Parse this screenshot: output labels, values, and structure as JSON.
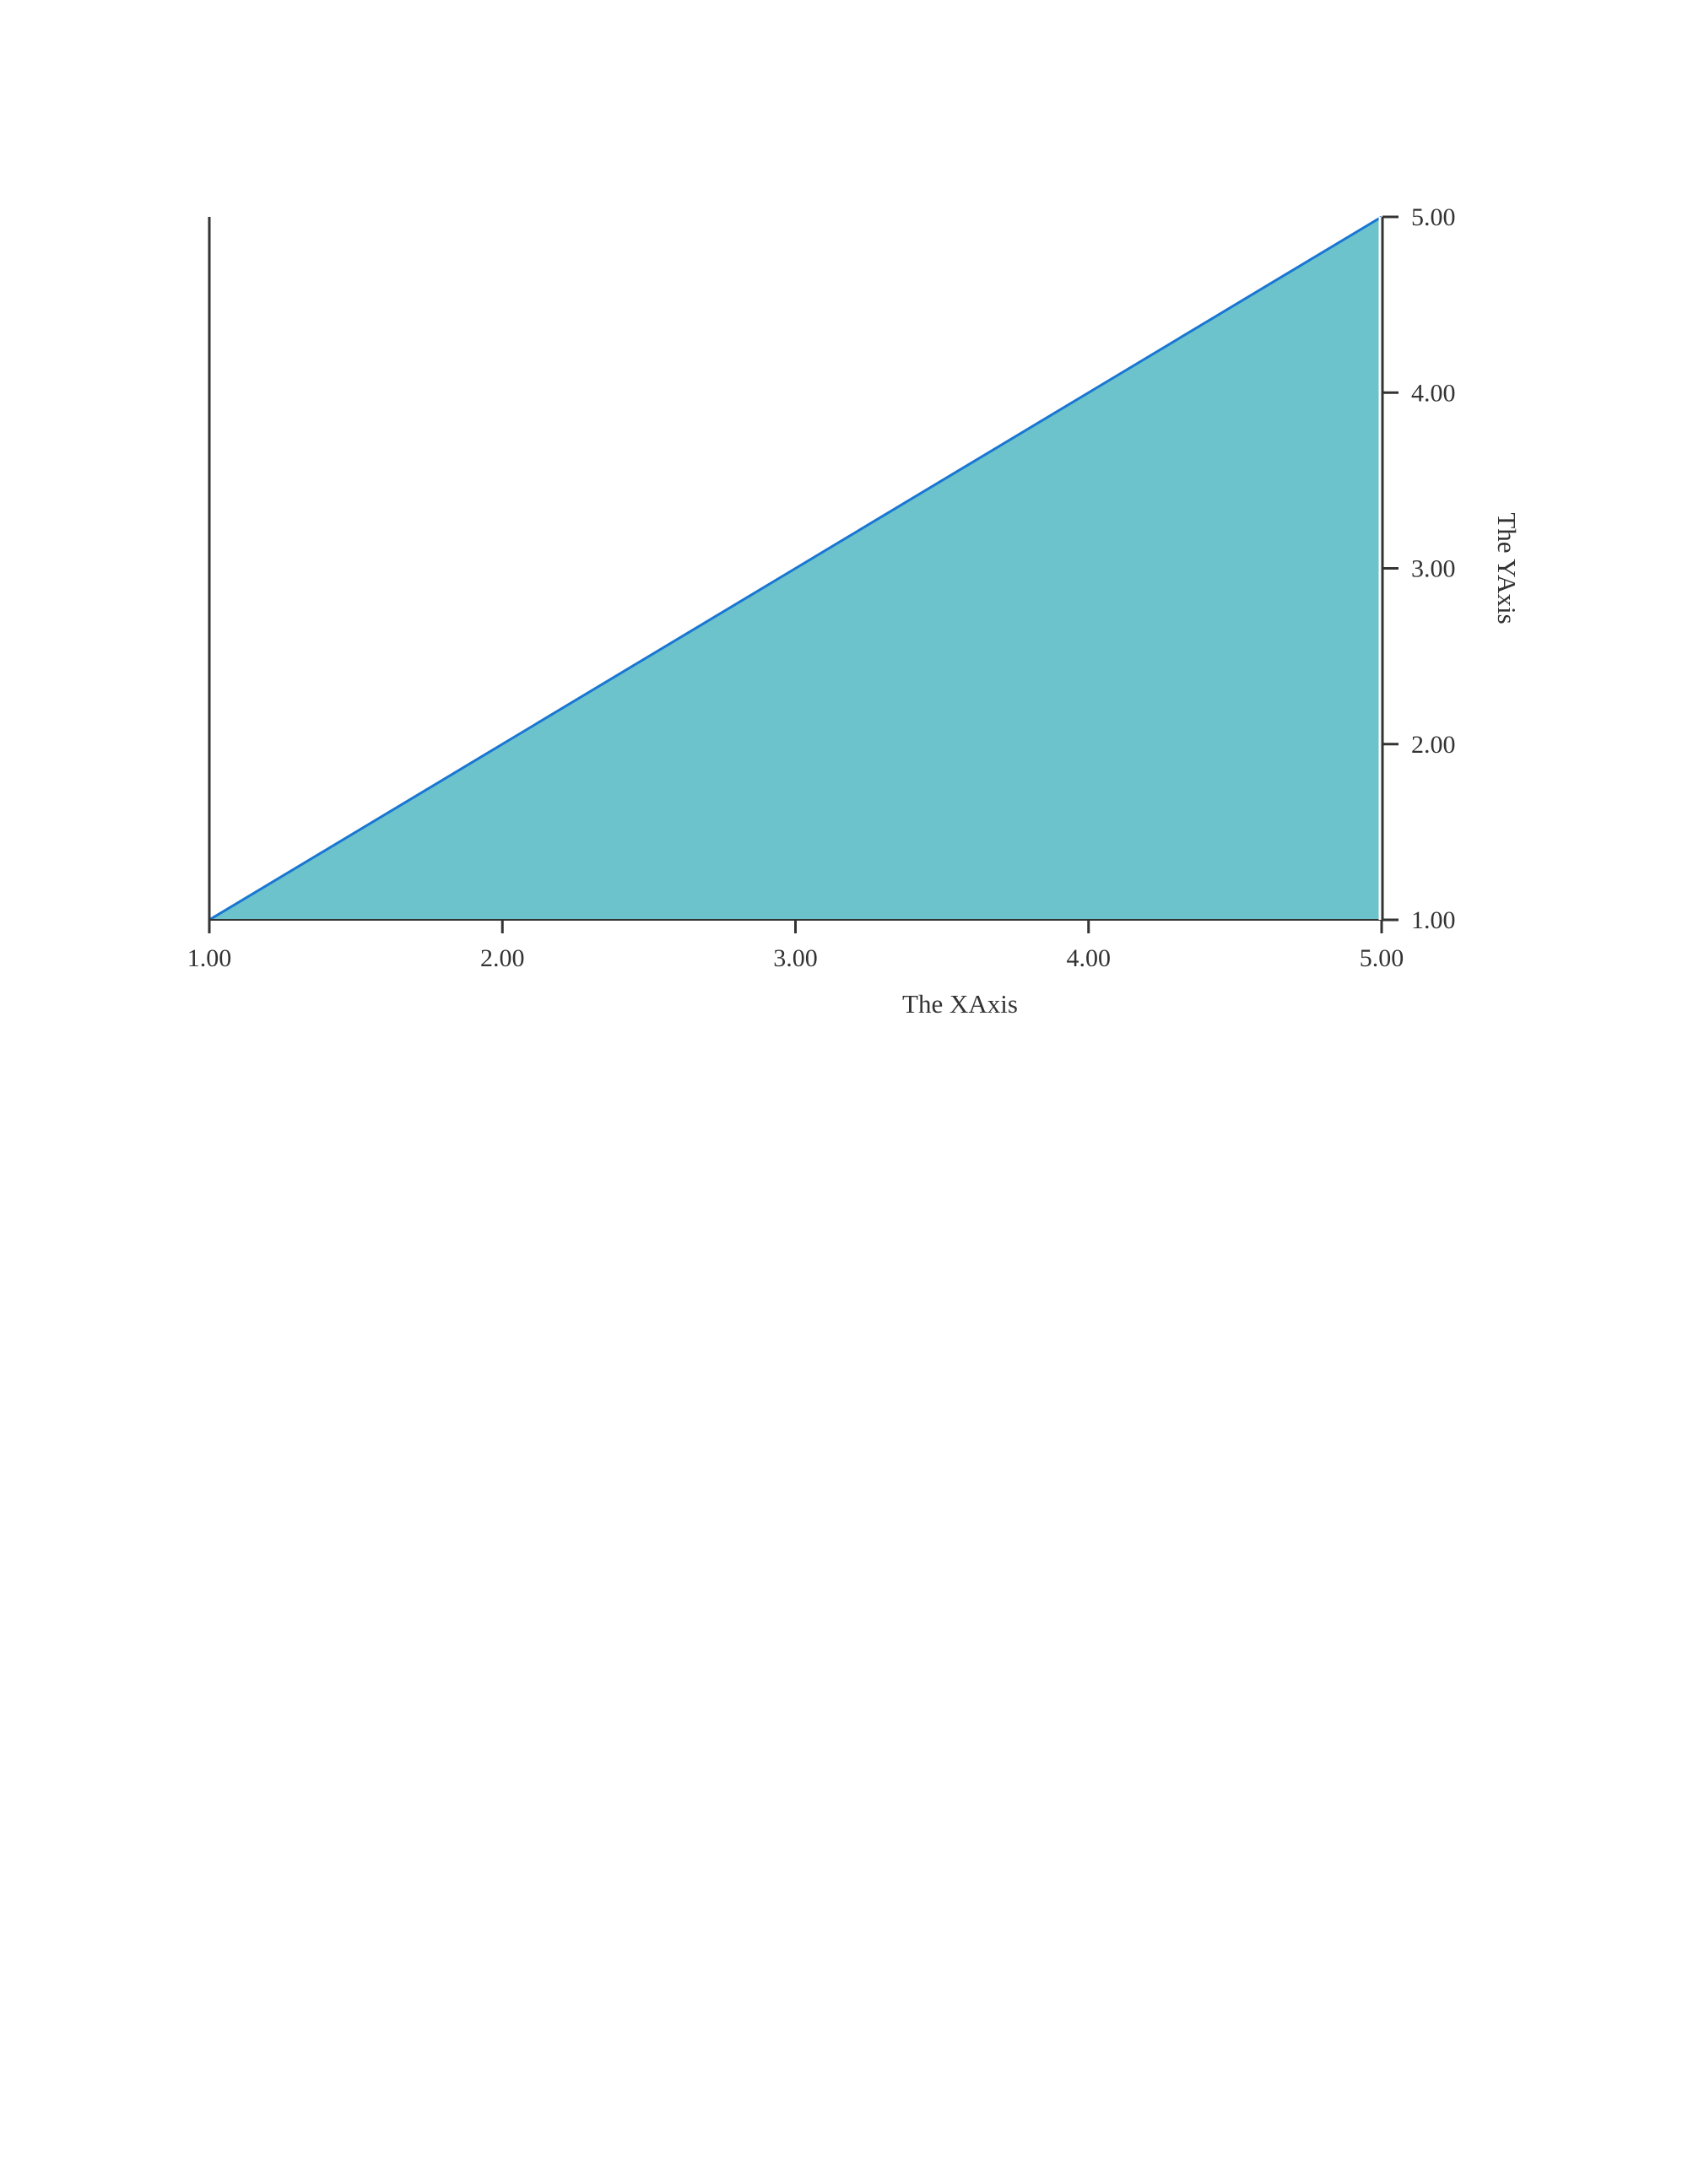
{
  "chart_data": {
    "type": "area",
    "title": "",
    "xlabel": "The XAxis",
    "ylabel": "The YAxis",
    "x": [
      1,
      2,
      3,
      4,
      5
    ],
    "series": [
      {
        "values": [
          1,
          2,
          3,
          4,
          5
        ]
      }
    ],
    "xlim": [
      1,
      5
    ],
    "ylim": [
      1,
      5
    ],
    "x_ticks": [
      "1.00",
      "2.00",
      "3.00",
      "4.00",
      "5.00"
    ],
    "y_ticks": [
      "1.00",
      "2.00",
      "3.00",
      "4.00",
      "5.00"
    ],
    "y_axis_position": "right",
    "grid": false,
    "legend": "none",
    "colors": {
      "fill": "#6cc3cb",
      "line": "#1976d2",
      "axis": "#333333",
      "text": "#333333"
    }
  }
}
